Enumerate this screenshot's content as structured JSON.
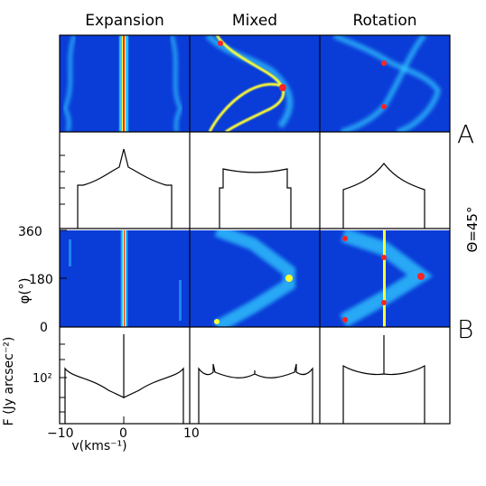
{
  "colors": {
    "panel_bg": "#0a3cd8",
    "cyan": "#33ccff",
    "yellow": "#ffff33",
    "red": "#ff2222",
    "line": "#000000"
  },
  "columns": [
    "Expansion",
    "Mixed",
    "Rotation"
  ],
  "row_labels": {
    "a": "A",
    "b": "B"
  },
  "theta_label": "Θ=45°",
  "phi_axis": {
    "label": "φ(°)",
    "ticks": [
      "360",
      "180",
      "0"
    ]
  },
  "flux_axis": {
    "label": "F (Jy arcsec⁻²)",
    "tick": "10²"
  },
  "v_axis": {
    "label": "v(kms⁻¹)",
    "ticks": [
      "−10",
      "0",
      "10"
    ]
  },
  "chart_data": {
    "type": "heatmap",
    "description_panels": [
      {
        "row": "A",
        "kind": "phase-velocity map",
        "columns": [
          "Expansion",
          "Mixed",
          "Rotation"
        ]
      },
      {
        "row": "A",
        "kind": "flux profile",
        "columns": [
          "Expansion",
          "Mixed",
          "Rotation"
        ]
      },
      {
        "row": "B",
        "kind": "phase-velocity map",
        "columns": [
          "Expansion",
          "Mixed",
          "Rotation"
        ],
        "ylim": [
          0,
          360
        ]
      },
      {
        "row": "B",
        "kind": "flux profile",
        "columns": [
          "Expansion",
          "Mixed",
          "Rotation"
        ]
      }
    ],
    "xlim": [
      -10,
      10
    ],
    "phi_ticks": [
      0,
      180,
      360
    ],
    "xlabel": "v(kms⁻¹)",
    "ylabel_map": "φ(°)",
    "ylabel_flux": "F (Jy arcsec⁻²)"
  }
}
